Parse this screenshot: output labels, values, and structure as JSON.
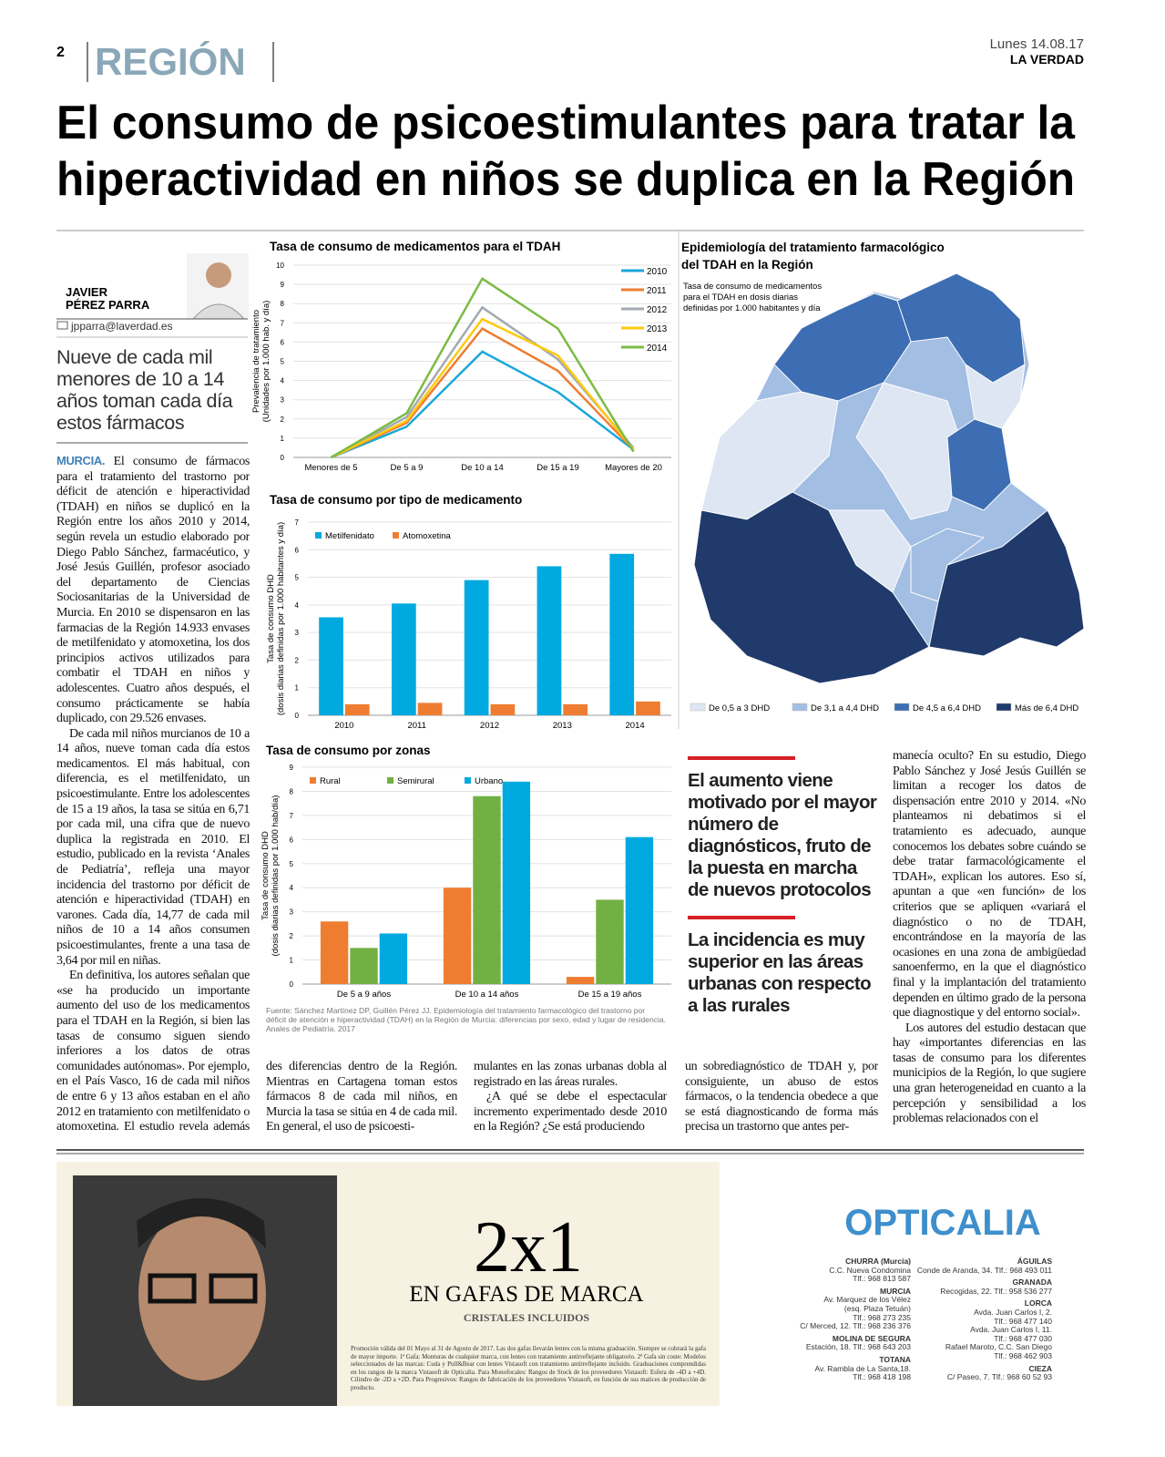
{
  "header": {
    "page": "2",
    "section": "REGIÓN",
    "date": "Lunes 14.08.17",
    "paper": "LA VERDAD"
  },
  "headline": [
    "El consumo de psicoestimulantes para tratar la",
    "hiperactividad en niños se duplica en la Región"
  ],
  "byline": {
    "name": [
      "JAVIER",
      "PÉREZ PARRA"
    ],
    "email": "jpparra@laverdad.es"
  },
  "subhead": "Nueve de cada mil menores de 10 a 14 años toman cada día estos fármacos",
  "body": {
    "lead": "MURCIA.",
    "col1": [
      "El consumo de fármacos para el tratamiento del trastorno por déficit de atención e hiperactividad (TDAH) en niños se duplicó en la Región entre los años 2010 y 2014, según revela un estudio elaborado por Diego Pablo Sánchez, farmacéutico, y José Jesús Guillén, profesor asociado del departamento de Ciencias Sociosanitarias de la Universidad de Murcia. En 2010 se dispensaron en las farmacias de la Región 14.933 envases de metilfenidato y atomoxetina, los dos principios activos utilizados para combatir el TDAH en niños y adolescentes. Cuatro años después, el consumo prácticamente se había duplicado, con 29.526 envases.",
      "De cada mil niños murcianos de 10 a 14 años, nueve toman cada día estos medicamentos. El más habitual, con diferencia, es el metilfenidato, un psicoestimulante. Entre los adolescentes de 15 a 19 años, la tasa se sitúa en 6,71 por cada mil, una cifra que de nuevo duplica la registrada en 2010. El estudio, publicado en la revista ‘Anales de Pediatría’, refleja una mayor incidencia del trastorno por déficit de atención e hiperactividad (TDAH) en varones. Cada día, 14,77 de cada mil niños de 10 a 14 años consumen psicoestimulantes, frente a una tasa de 3,64 por mil en niñas.",
      "En definitiva, los autores señalan que «se ha producido un importante aumento del uso de los medicamentos para el TDAH en la Región, si bien las tasas de consumo siguen siendo inferiores a los datos de otras comunidades autónomas». Por ejemplo, en el País Vasco, 16 de cada mil niños de entre 6 y 13 años estaban en el año 2012 en tratamiento con metilfenidato o atomoxetina. El estudio revela además gran-"
    ],
    "col2": [
      "des diferencias dentro de la Región. Mientras en Cartagena toman estos fármacos 8 de cada mil niños, en Murcia la tasa se sitúa en 4 de cada mil. En general, el uso de psicoesti-"
    ],
    "col3": [
      "mulantes en las zonas urbanas dobla al registrado en las áreas rurales.",
      "¿A qué se debe el espectacular incremento experimentado desde 2010 en la Región? ¿Se está produciendo"
    ],
    "col4": [
      "un sobrediagnóstico de TDAH y, por consiguiente, un abuso de estos fármacos, o la tendencia obedece a que se está diagnosticando de forma más precisa un trastorno que antes per-"
    ],
    "col5": [
      "manecía oculto? En su estudio, Diego Pablo Sánchez y José Jesús Guillén se limitan a recoger los datos de dispensación entre 2010 y 2014. «No planteamos ni debatimos si el tratamiento es adecuado, aunque conocemos los debates sobre cuándo se debe tratar farmacológicamente el TDAH», explican los autores. Eso sí, apuntan a que «en función» de los criterios que se apliquen «variará el diagnóstico o no de TDAH, encontrándose en la mayoría de las ocasiones en una zona de ambigüedad sanoenfermo, en la que el diagnóstico final y la implantación del tratamiento dependen en último grado de la persona que diagnostique y del entorno social».",
      "Los autores del estudio destacan que hay «importantes diferencias en las tasas de consumo para los diferentes municipios de la Región, lo que sugiere una gran heterogeneidad en cuanto a la percepción y sensibilidad a los problemas relacionados con el"
    ]
  },
  "quotes": [
    "El aumento viene motivado por el mayor número de diagnósticos, fruto de la puesta en marcha de nuevos protocolos",
    "La incidencia es muy superior en las áreas urbanas con respecto a las rurales"
  ],
  "chart_data": [
    {
      "type": "line",
      "title": "Tasa de consumo de medicamentos para el TDAH",
      "y_label": [
        "Prevalencia de tratamiento",
        "(Unidades por 1.000 hab. y día)"
      ],
      "categories": [
        "Menores de 5",
        "De 5 a 9",
        "De 10 a 14",
        "De 15 a 19",
        "Mayores de 20"
      ],
      "series": [
        {
          "name": "2010",
          "color": "#1aa7d9",
          "values": [
            0,
            1.6,
            5.5,
            3.4,
            0.4
          ]
        },
        {
          "name": "2011",
          "color": "#ee7d31",
          "values": [
            0,
            1.8,
            6.7,
            4.5,
            0.4
          ]
        },
        {
          "name": "2012",
          "color": "#a4aab3",
          "values": [
            0,
            2.1,
            7.8,
            5.1,
            0.5
          ]
        },
        {
          "name": "2013",
          "color": "#ffc90e",
          "values": [
            0,
            1.9,
            7.2,
            5.3,
            0.4
          ]
        },
        {
          "name": "2014",
          "color": "#7cbb44",
          "values": [
            0,
            2.3,
            9.3,
            6.7,
            0.3
          ]
        }
      ],
      "ylim": [
        0,
        10
      ],
      "yticks": [
        0,
        1,
        2,
        3,
        4,
        5,
        6,
        7,
        8,
        9,
        10
      ],
      "grid": true,
      "legend": "right"
    },
    {
      "type": "bar",
      "title": "Tasa de consumo por tipo de medicamento",
      "y_label": [
        "Tasa de consumo DHD",
        "(dosis diarias definidas por 1.000 habitantes y día)"
      ],
      "categories": [
        "2010",
        "2011",
        "2012",
        "2013",
        "2014"
      ],
      "series": [
        {
          "name": "Metilfenidato",
          "color": "#00a9e0",
          "values": [
            3.55,
            4.05,
            4.9,
            5.4,
            5.85
          ]
        },
        {
          "name": "Atomoxetina",
          "color": "#ee7d31",
          "values": [
            0.4,
            0.45,
            0.4,
            0.4,
            0.5
          ]
        }
      ],
      "ylim": [
        0,
        7
      ],
      "yticks": [
        0,
        1,
        2,
        3,
        4,
        5,
        6,
        7
      ],
      "grid": true,
      "legend": "top-left"
    },
    {
      "type": "bar",
      "title": "Tasa de consumo por zonas",
      "y_label": [
        "Tasa de consumo DHD",
        "(dosis diarias definidas por 1.000 hab/día)"
      ],
      "categories": [
        "De 5 a 9 años",
        "De 10 a 14 años",
        "De 15 a 19 años"
      ],
      "series": [
        {
          "name": "Rural",
          "color": "#ee7d31",
          "values": [
            2.6,
            4.0,
            0.3
          ]
        },
        {
          "name": "Semirural",
          "color": "#72b043",
          "values": [
            1.5,
            7.8,
            3.5
          ]
        },
        {
          "name": "Urbano",
          "color": "#00a9e0",
          "values": [
            2.1,
            8.4,
            6.1
          ]
        }
      ],
      "ylim": [
        0,
        9
      ],
      "yticks": [
        0,
        1,
        2,
        3,
        4,
        5,
        6,
        7,
        8,
        9
      ],
      "grid": true,
      "legend": "top-left"
    }
  ],
  "source": "Fuente: Sánchez Martínez DP, Guillén Pérez JJ. Epidemiología del tratamiento farmacológico del trastorno por déficit de atención e hiperactividad (TDAH) en la Región de Murcia: diferencias por sexo, edad y lugar de residencia. Anales de Pediatría. 2017",
  "map": {
    "title": [
      "Epidemiología del tratamiento farmacológico",
      "del TDAH en la Región"
    ],
    "subtitle": [
      "Tasa de consumo de medicamentos",
      "para el TDAH en dosis diarias",
      "definidas por 1.000 habitantes y día"
    ],
    "legend": [
      {
        "label": "De 0,5 a 3 DHD",
        "color": "#dde6f2"
      },
      {
        "label": "De 3,1 a 4,4 DHD",
        "color": "#a3bee3"
      },
      {
        "label": "De 4,5 a 6,4 DHD",
        "color": "#3d6db3"
      },
      {
        "label": "Más de 6,4 DHD",
        "color": "#1f3a6b"
      }
    ]
  },
  "ad": {
    "offer": "2x1",
    "tagline": "EN GAFAS DE MARCA",
    "sub": "CRISTALES INCLUIDOS",
    "fine_print": "Promoción válida del 01 Mayo al 31 de Agosto de 2017. Las dos gafas llevarán lentes con la misma graduación. Siempre se cobrará la gafa de mayor importe. 1ª Gafa: Monturas de cualquier marca, con lentes con tratamiento antirreflejante obligatorio. 2ª Gafa sin coste: Modelos seleccionados de las marcas: Cuda y Pull&Bear con lentes Vistasoft con tratamiento antirreflejante incluido. Graduaciones comprendidas en los rangos de la marca Vistasoft de Opticalia. Para Monofocales: Rangos de Stock de los proveedores Vistasoft: Esfera de -4D a +4D. Cilindro de -2D a +2D. Para Progresivos: Rangos de fabricación de los proveedores Vistasoft, en función de sus matices de producción de producto.",
    "brand": "OPTICALIA",
    "stores_left": [
      {
        "city": "CHURRA (Murcia)",
        "lines": [
          "C.C. Nueva Condomina",
          "Tlf.: 968 813 587"
        ]
      },
      {
        "city": "MURCIA",
        "lines": [
          "Av. Marquez de los Vélez",
          "(esq. Plaza Tetuán)",
          "Tlf.: 968 273 235",
          "C/ Merced, 12. Tlf.: 968 236 376"
        ]
      },
      {
        "city": "MOLINA DE SEGURA",
        "lines": [
          "Estación, 18. Tlf.: 968 643 203"
        ]
      },
      {
        "city": "TOTANA",
        "lines": [
          "Av. Rambla de La Santa,18.",
          "Tlf.: 968 418 198"
        ]
      }
    ],
    "stores_right": [
      {
        "city": "ÁGUILAS",
        "lines": [
          "Conde de Aranda, 34. Tlf.: 968 493 011"
        ]
      },
      {
        "city": "GRANADA",
        "lines": [
          "Recogidas, 22. Tlf.: 958 536 277"
        ]
      },
      {
        "city": "LORCA",
        "lines": [
          "Avda. Juan Carlos I, 2.",
          "Tlf.: 968 477 140",
          "Avda. Juan Carlos I, 11.",
          "Tlf.: 968 477 030",
          "Rafael Maroto, C.C. San Diego",
          "Tlf.: 968 462 903"
        ]
      },
      {
        "city": "CIEZA",
        "lines": [
          "C/ Paseo, 7. Tlf.: 968 60 52 93"
        ]
      }
    ]
  }
}
